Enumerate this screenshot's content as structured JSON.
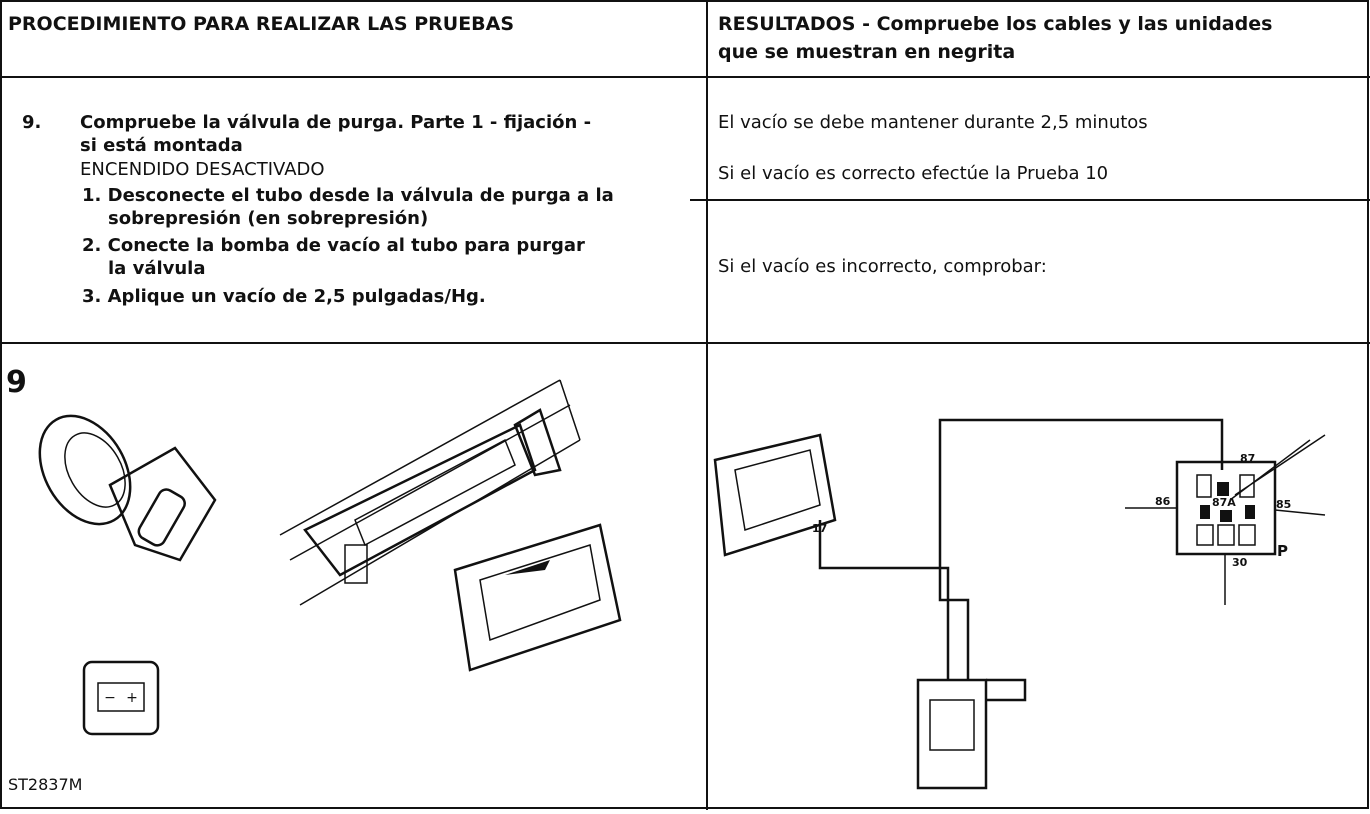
{
  "header": {
    "left": "PROCEDIMIENTO PARA REALIZAR LAS PRUEBAS",
    "right_lines": [
      "RESULTADOS - Compruebe los cables y las unidades",
      "que se muestran en negrita"
    ]
  },
  "step": {
    "number": "9.",
    "title_lines": [
      "Compruebe la válvula de purga. Parte 1 - fijación -",
      "si está montada"
    ],
    "condition": "ENCENDIDO DESACTIVADO",
    "substeps": [
      [
        "1. Desconecte el tubo desde la válvula de purga a la",
        "sobrepresión (en sobrepresión)"
      ],
      [
        "2. Conecte la bomba de vacío al tubo para purgar",
        "la válvula"
      ],
      [
        "3. Aplique un vacío de 2,5 pulgadas/Hg."
      ]
    ]
  },
  "results": [
    "El vacío se debe mantener durante 2,5 minutos",
    "Si el vacío es correcto efectúe la Prueba 10",
    "Si el vacío es incorrecto, comprobar:"
  ],
  "figure": {
    "number": "9",
    "code": "ST2837M",
    "battery_signs": [
      "−",
      "+"
    ]
  },
  "diagram": {
    "pin": "17",
    "relay_pins": [
      "87",
      "86",
      "87A",
      "85",
      "30",
      "P"
    ]
  }
}
